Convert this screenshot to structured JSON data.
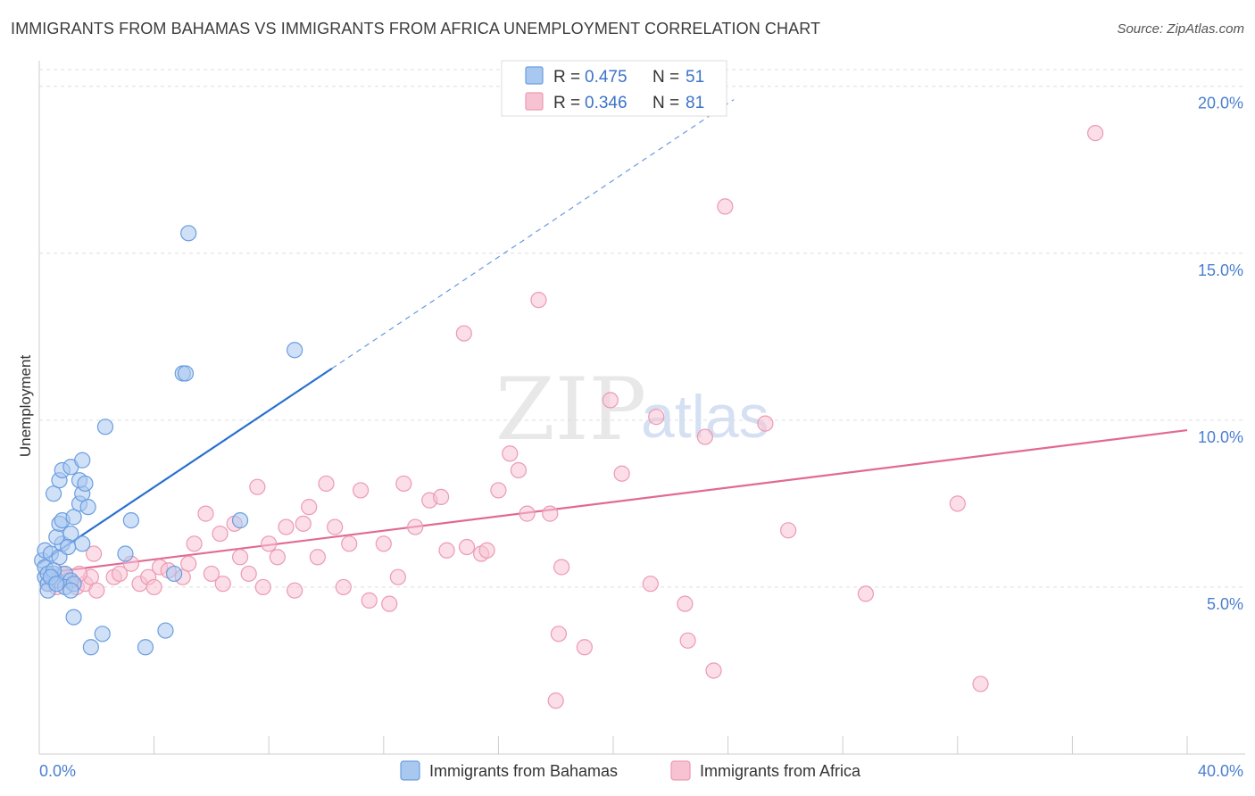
{
  "title": "IMMIGRANTS FROM BAHAMAS VS IMMIGRANTS FROM AFRICA UNEMPLOYMENT CORRELATION CHART",
  "source": "Source: ZipAtlas.com",
  "watermark": {
    "zip": "ZIP",
    "atlas": "atlas"
  },
  "colors": {
    "bahamas_fill": "#a9c8f0",
    "bahamas_stroke": "#6a9de0",
    "bahamas_line": "#2a6fd0",
    "africa_fill": "#f7c3d3",
    "africa_stroke": "#ec9ab3",
    "africa_line": "#e06a94",
    "grid": "#dddddd",
    "tick_text": "#4a7fd0"
  },
  "legend": {
    "rows": [
      {
        "r_label": "R =",
        "r_value": "0.475",
        "n_label": "N =",
        "n_value": "51"
      },
      {
        "r_label": "R =",
        "r_value": "0.346",
        "n_label": "N =",
        "n_value": "81"
      }
    ]
  },
  "chart_data": {
    "type": "scatter",
    "title": "IMMIGRANTS FROM BAHAMAS VS IMMIGRANTS FROM AFRICA UNEMPLOYMENT CORRELATION CHART",
    "xlabel": "",
    "ylabel": "Unemployment",
    "xlim": [
      0,
      40
    ],
    "ylim": [
      0,
      20.5
    ],
    "x_tick_labels": [
      "0.0%",
      "40.0%"
    ],
    "y_ticks": [
      5,
      10,
      15,
      20
    ],
    "y_tick_labels": [
      "5.0%",
      "10.0%",
      "15.0%",
      "20.0%"
    ],
    "grid": true,
    "legend_position": "top-center",
    "series": [
      {
        "name": "Immigrants from Bahamas",
        "r": 0.475,
        "n": 51,
        "trend": {
          "x0": 0.0,
          "y0": 5.7,
          "x1": 10.2,
          "y1": 11.55,
          "dashed_to_x": 24.2,
          "dashed_to_y": 19.6
        },
        "points": [
          [
            0.1,
            5.8
          ],
          [
            0.2,
            6.1
          ],
          [
            0.2,
            5.3
          ],
          [
            0.3,
            5.1
          ],
          [
            0.2,
            5.6
          ],
          [
            0.4,
            6.0
          ],
          [
            0.5,
            5.4
          ],
          [
            0.6,
            5.2
          ],
          [
            0.3,
            4.9
          ],
          [
            0.7,
            5.9
          ],
          [
            0.8,
            6.3
          ],
          [
            0.6,
            6.5
          ],
          [
            0.7,
            6.9
          ],
          [
            0.8,
            7.0
          ],
          [
            1.1,
            6.6
          ],
          [
            1.2,
            7.1
          ],
          [
            1.4,
            7.5
          ],
          [
            1.5,
            7.8
          ],
          [
            0.5,
            7.8
          ],
          [
            0.7,
            8.2
          ],
          [
            0.8,
            8.5
          ],
          [
            1.1,
            8.6
          ],
          [
            1.4,
            8.2
          ],
          [
            1.6,
            8.1
          ],
          [
            1.5,
            8.8
          ],
          [
            1.7,
            7.4
          ],
          [
            1.5,
            6.3
          ],
          [
            0.9,
            5.4
          ],
          [
            1.1,
            5.2
          ],
          [
            0.9,
            5.0
          ],
          [
            1.2,
            5.1
          ],
          [
            1.1,
            4.9
          ],
          [
            0.3,
            5.4
          ],
          [
            0.5,
            5.5
          ],
          [
            0.4,
            5.3
          ],
          [
            1.2,
            4.1
          ],
          [
            1.8,
            3.2
          ],
          [
            2.2,
            3.6
          ],
          [
            3.2,
            7.0
          ],
          [
            2.3,
            9.8
          ],
          [
            3.7,
            3.2
          ],
          [
            4.4,
            3.7
          ],
          [
            4.7,
            5.4
          ],
          [
            5.0,
            11.4
          ],
          [
            5.1,
            11.4
          ],
          [
            5.2,
            15.6
          ],
          [
            7.0,
            7.0
          ],
          [
            8.9,
            12.1
          ],
          [
            3.0,
            6.0
          ],
          [
            0.6,
            5.1
          ],
          [
            1.0,
            6.2
          ]
        ]
      },
      {
        "name": "Immigrants from Africa",
        "r": 0.346,
        "n": 81,
        "trend": {
          "x0": 0.0,
          "y0": 5.4,
          "x1": 40.0,
          "y1": 9.7
        },
        "points": [
          [
            0.3,
            5.1
          ],
          [
            0.5,
            5.3
          ],
          [
            0.8,
            5.4
          ],
          [
            1.0,
            5.2
          ],
          [
            1.3,
            5.0
          ],
          [
            1.6,
            5.1
          ],
          [
            1.8,
            5.3
          ],
          [
            2.0,
            4.9
          ],
          [
            1.4,
            5.4
          ],
          [
            0.6,
            5.0
          ],
          [
            1.9,
            6.0
          ],
          [
            2.6,
            5.3
          ],
          [
            2.8,
            5.4
          ],
          [
            3.2,
            5.7
          ],
          [
            3.5,
            5.1
          ],
          [
            3.8,
            5.3
          ],
          [
            4.0,
            5.0
          ],
          [
            4.2,
            5.6
          ],
          [
            4.5,
            5.5
          ],
          [
            5.0,
            5.3
          ],
          [
            5.2,
            5.7
          ],
          [
            5.4,
            6.3
          ],
          [
            5.8,
            7.2
          ],
          [
            6.0,
            5.4
          ],
          [
            6.3,
            6.6
          ],
          [
            6.4,
            5.1
          ],
          [
            6.8,
            6.9
          ],
          [
            7.0,
            5.9
          ],
          [
            7.3,
            5.4
          ],
          [
            7.6,
            8.0
          ],
          [
            7.8,
            5.0
          ],
          [
            8.0,
            6.3
          ],
          [
            8.3,
            5.9
          ],
          [
            8.6,
            6.8
          ],
          [
            8.9,
            4.9
          ],
          [
            9.2,
            6.9
          ],
          [
            9.4,
            7.4
          ],
          [
            9.7,
            5.9
          ],
          [
            10.0,
            8.1
          ],
          [
            10.3,
            6.8
          ],
          [
            10.6,
            5.0
          ],
          [
            10.8,
            6.3
          ],
          [
            11.2,
            7.9
          ],
          [
            11.5,
            4.6
          ],
          [
            12.0,
            6.3
          ],
          [
            12.2,
            4.5
          ],
          [
            12.5,
            5.3
          ],
          [
            12.7,
            8.1
          ],
          [
            13.1,
            6.8
          ],
          [
            13.6,
            7.6
          ],
          [
            14.0,
            7.7
          ],
          [
            14.2,
            6.1
          ],
          [
            14.8,
            12.6
          ],
          [
            14.9,
            6.2
          ],
          [
            15.4,
            6.0
          ],
          [
            15.6,
            6.1
          ],
          [
            16.0,
            7.9
          ],
          [
            16.4,
            9.0
          ],
          [
            16.7,
            8.5
          ],
          [
            17.0,
            7.2
          ],
          [
            17.4,
            13.6
          ],
          [
            17.8,
            7.2
          ],
          [
            18.2,
            5.6
          ],
          [
            18.0,
            1.6
          ],
          [
            18.1,
            3.6
          ],
          [
            19.0,
            3.2
          ],
          [
            19.9,
            10.6
          ],
          [
            20.3,
            8.4
          ],
          [
            21.3,
            5.1
          ],
          [
            21.5,
            10.1
          ],
          [
            22.5,
            4.5
          ],
          [
            22.6,
            3.4
          ],
          [
            23.2,
            9.5
          ],
          [
            23.5,
            2.5
          ],
          [
            23.9,
            16.4
          ],
          [
            25.3,
            9.9
          ],
          [
            26.1,
            6.7
          ],
          [
            28.8,
            4.8
          ],
          [
            32.0,
            7.5
          ],
          [
            32.8,
            2.1
          ],
          [
            36.8,
            18.6
          ]
        ]
      }
    ]
  },
  "bottom_legend": [
    {
      "label": "Immigrants from Bahamas"
    },
    {
      "label": "Immigrants from Africa"
    }
  ]
}
